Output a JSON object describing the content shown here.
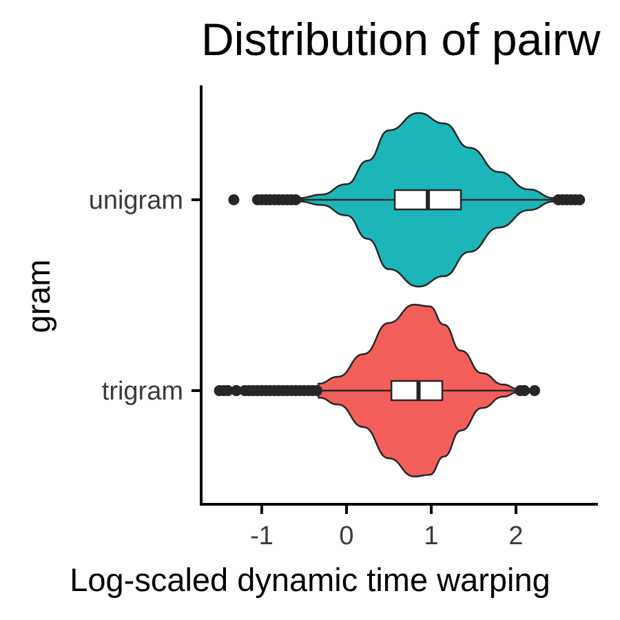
{
  "chart_data": {
    "type": "violin",
    "orientation": "horizontal",
    "title": "Distribution of pairw",
    "xlabel": "Log-scaled dynamic time warping",
    "ylabel": "gram",
    "xlim": [
      -1.7,
      2.95
    ],
    "xticks": [
      "-1",
      "0",
      "1",
      "2"
    ],
    "grid": false,
    "legend": "none",
    "categories": [
      "unigram",
      "trigram"
    ],
    "series": [
      {
        "name": "unigram",
        "color": "#1cb5b9",
        "box": {
          "q1": 0.57,
          "median": 0.96,
          "q3": 1.35,
          "whisker_low": -0.55,
          "whisker_high": 2.45
        },
        "outliers": [
          -1.33,
          -1.05,
          -1.0,
          -0.95,
          -0.9,
          -0.85,
          -0.8,
          -0.75,
          -0.7,
          -0.65,
          -0.6,
          2.5,
          2.55,
          2.6,
          2.65,
          2.7,
          2.75
        ],
        "density": [
          [
            -0.55,
            0.02
          ],
          [
            -0.3,
            0.06
          ],
          [
            0.0,
            0.18
          ],
          [
            0.25,
            0.45
          ],
          [
            0.5,
            0.8
          ],
          [
            0.85,
            1.0
          ],
          [
            1.15,
            0.88
          ],
          [
            1.45,
            0.6
          ],
          [
            1.8,
            0.32
          ],
          [
            2.15,
            0.12
          ],
          [
            2.45,
            0.02
          ]
        ]
      },
      {
        "name": "trigram",
        "color": "#f35e5a",
        "box": {
          "q1": 0.53,
          "median": 0.85,
          "q3": 1.13,
          "whisker_low": -0.33,
          "whisker_high": 2.02
        },
        "outliers": [
          -1.5,
          -1.45,
          -1.4,
          -1.3,
          -1.2,
          -1.15,
          -1.1,
          -1.05,
          -1.0,
          -0.95,
          -0.9,
          -0.85,
          -0.8,
          -0.75,
          -0.7,
          -0.65,
          -0.6,
          -0.55,
          -0.5,
          -0.45,
          -0.4,
          -0.35,
          2.05,
          2.1,
          2.22
        ],
        "density": [
          [
            -0.33,
            0.08
          ],
          [
            -0.1,
            0.16
          ],
          [
            0.2,
            0.42
          ],
          [
            0.5,
            0.78
          ],
          [
            0.8,
            0.99
          ],
          [
            0.98,
            0.97
          ],
          [
            1.15,
            0.76
          ],
          [
            1.35,
            0.46
          ],
          [
            1.6,
            0.2
          ],
          [
            1.85,
            0.07
          ],
          [
            2.02,
            0.02
          ]
        ]
      }
    ]
  }
}
